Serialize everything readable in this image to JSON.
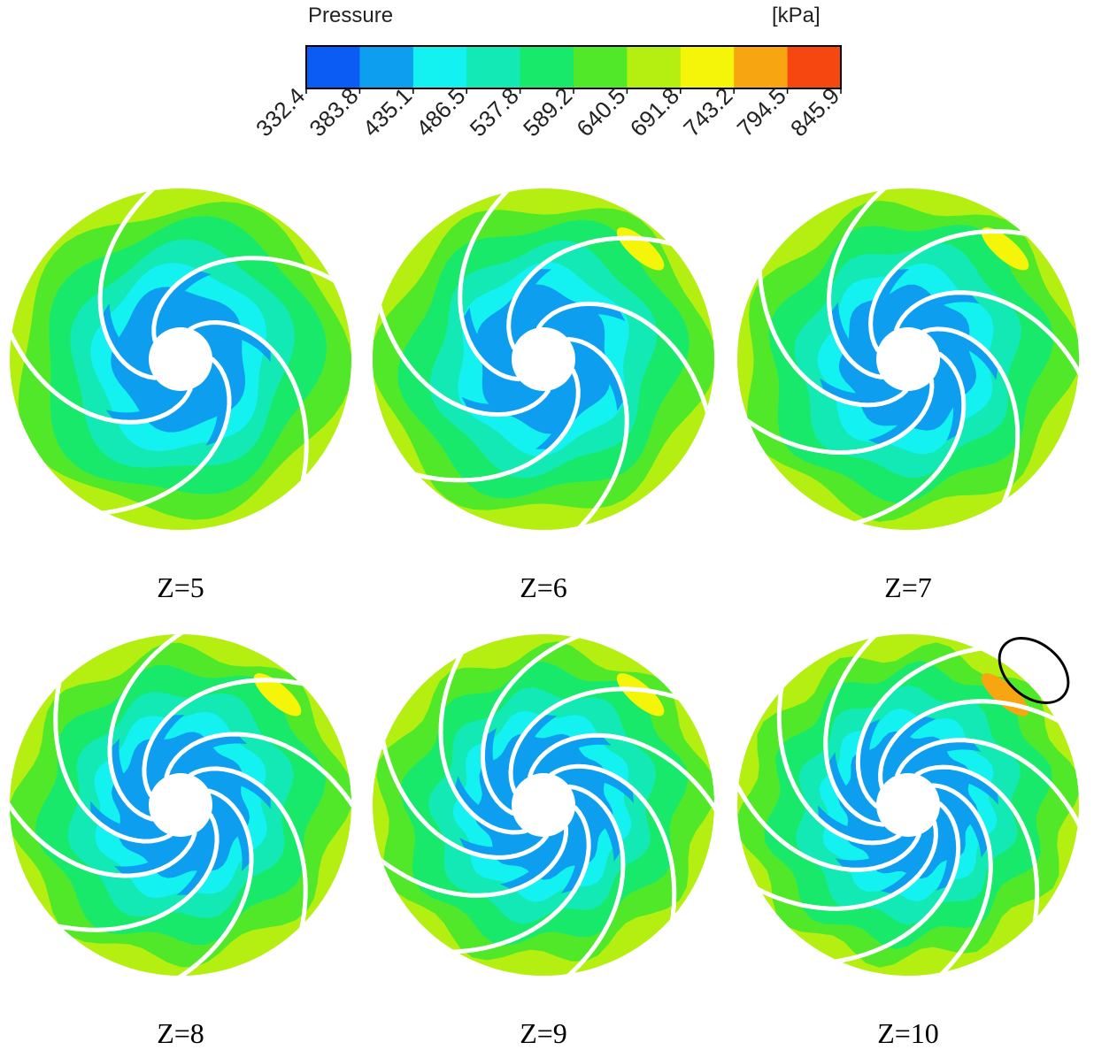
{
  "legend": {
    "title": "Pressure",
    "unit": "[kPa]",
    "ticks": [
      "332.4",
      "383.8",
      "435.1",
      "486.5",
      "537.8",
      "589.2",
      "640.5",
      "691.8",
      "743.2",
      "794.5",
      "845.9"
    ],
    "colors": [
      "#0a5cf5",
      "#0e9ef0",
      "#13f1f1",
      "#12e9b4",
      "#19e96b",
      "#52e82a",
      "#b5ef12",
      "#f5f50a",
      "#f7a611",
      "#f5470f"
    ]
  },
  "panels": [
    {
      "label": "Z=5",
      "blades": 5,
      "highlight": false
    },
    {
      "label": "Z=6",
      "blades": 6,
      "highlight": false
    },
    {
      "label": "Z=7",
      "blades": 7,
      "highlight": false
    },
    {
      "label": "Z=8",
      "blades": 8,
      "highlight": false
    },
    {
      "label": "Z=9",
      "blades": 9,
      "highlight": false
    },
    {
      "label": "Z=10",
      "blades": 10,
      "highlight": true
    }
  ]
}
